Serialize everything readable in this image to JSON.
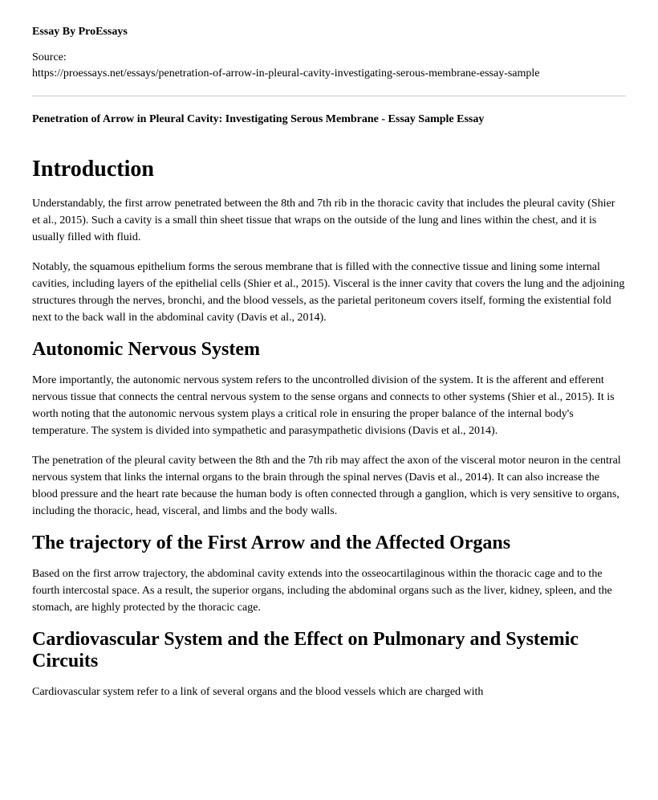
{
  "header": {
    "byline": "Essay By ProEssays",
    "source_label": "Source:",
    "source_url": "https://proessays.net/essays/penetration-of-arrow-in-pleural-cavity-investigating-serous-membrane-essay-sample",
    "title": "Penetration of Arrow in Pleural Cavity: Investigating Serous Membrane - Essay Sample Essay"
  },
  "sections": {
    "intro": {
      "heading": "Introduction",
      "p1": "Understandably, the first arrow penetrated between the 8th and 7th rib in the thoracic cavity that includes the pleural cavity (Shier et al., 2015). Such a cavity is a small thin sheet tissue that wraps on the outside of the lung and lines within the chest, and it is usually filled with fluid.",
      "p2": "Notably, the squamous epithelium forms the serous membrane that is filled with the connective tissue and lining some internal cavities, including layers of the epithelial cells (Shier et al., 2015). Visceral is the inner cavity that covers the lung and the adjoining structures through the nerves, bronchi, and the blood vessels, as the parietal peritoneum covers itself, forming the existential fold next to the back wall in the abdominal cavity (Davis et al., 2014)."
    },
    "ans": {
      "heading": "Autonomic Nervous System",
      "p1": "More importantly, the autonomic nervous system refers to the uncontrolled division of the system. It is the afferent and efferent nervous tissue that connects the central nervous system to the sense organs and connects to other systems (Shier et al., 2015). It is worth noting that the autonomic nervous system plays a critical role in ensuring the proper balance of the internal body's temperature. The system is divided into sympathetic and parasympathetic divisions (Davis et al., 2014).",
      "p2": "The penetration of the pleural cavity between the 8th and the 7th rib may affect the axon of the visceral motor neuron in the central nervous system that links the internal organs to the brain through the spinal nerves (Davis et al., 2014). It can also increase the blood pressure and the heart rate because the human body is often connected through a ganglion, which is very sensitive to organs, including the thoracic, head, visceral, and limbs and the body walls."
    },
    "trajectory": {
      "heading": "The trajectory of the First Arrow and the Affected Organs",
      "p1": "Based on the first arrow trajectory, the abdominal cavity extends into the osseocartilaginous within the thoracic cage and to the fourth intercostal space. As a result, the superior organs, including the abdominal organs such as the liver, kidney, spleen, and the stomach, are highly protected by the thoracic cage."
    },
    "cardio": {
      "heading": "Cardiovascular System and the Effect on Pulmonary and Systemic Circuits",
      "p1": "Cardiovascular system refer to a link of several organs and the blood vessels which are charged with"
    }
  },
  "styles": {
    "background_color": "#ffffff",
    "text_color": "#000000",
    "hr_color": "#cccccc",
    "body_font": "Georgia, Times New Roman, serif",
    "byline_fontsize": 14,
    "byline_fontweight": "bold",
    "source_fontsize": 14,
    "title_fontsize": 14,
    "title_fontweight": "bold",
    "h1_fontsize": 28,
    "h2_fontsize": 24,
    "p_fontsize": 14,
    "p_lineheight": 1.5
  }
}
